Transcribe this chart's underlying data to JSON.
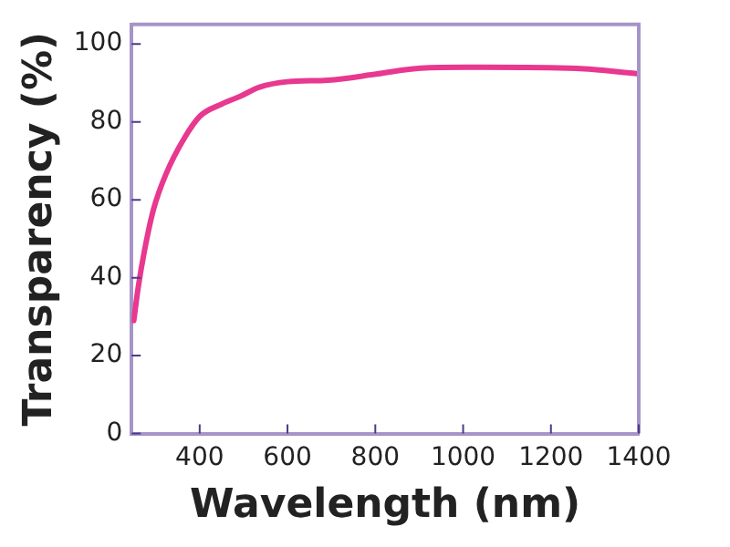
{
  "chart_data": {
    "type": "line",
    "xlabel": "Wavelength (nm)",
    "ylabel": "Transparency (%)",
    "xlim": [
      245,
      1400
    ],
    "ylim": [
      0,
      105
    ],
    "xticks": [
      400,
      600,
      800,
      1000,
      1200,
      1400
    ],
    "yticks": [
      0,
      20,
      40,
      60,
      80,
      100
    ],
    "grid": false,
    "legend": false,
    "marker": "none",
    "line_style": "solid",
    "series": [
      {
        "color": "#e8388f",
        "x": [
          250,
          260,
          274,
          295,
          324,
          366,
          401,
          451,
          493,
          536,
          600,
          692,
          805,
          904,
          1046,
          1258,
          1400
        ],
        "values": [
          29,
          37.5,
          46.8,
          57.6,
          66.8,
          76,
          81.5,
          84.6,
          86.6,
          88.9,
          90.3,
          90.7,
          92.3,
          93.8,
          94,
          93.7,
          92.3
        ]
      }
    ]
  }
}
